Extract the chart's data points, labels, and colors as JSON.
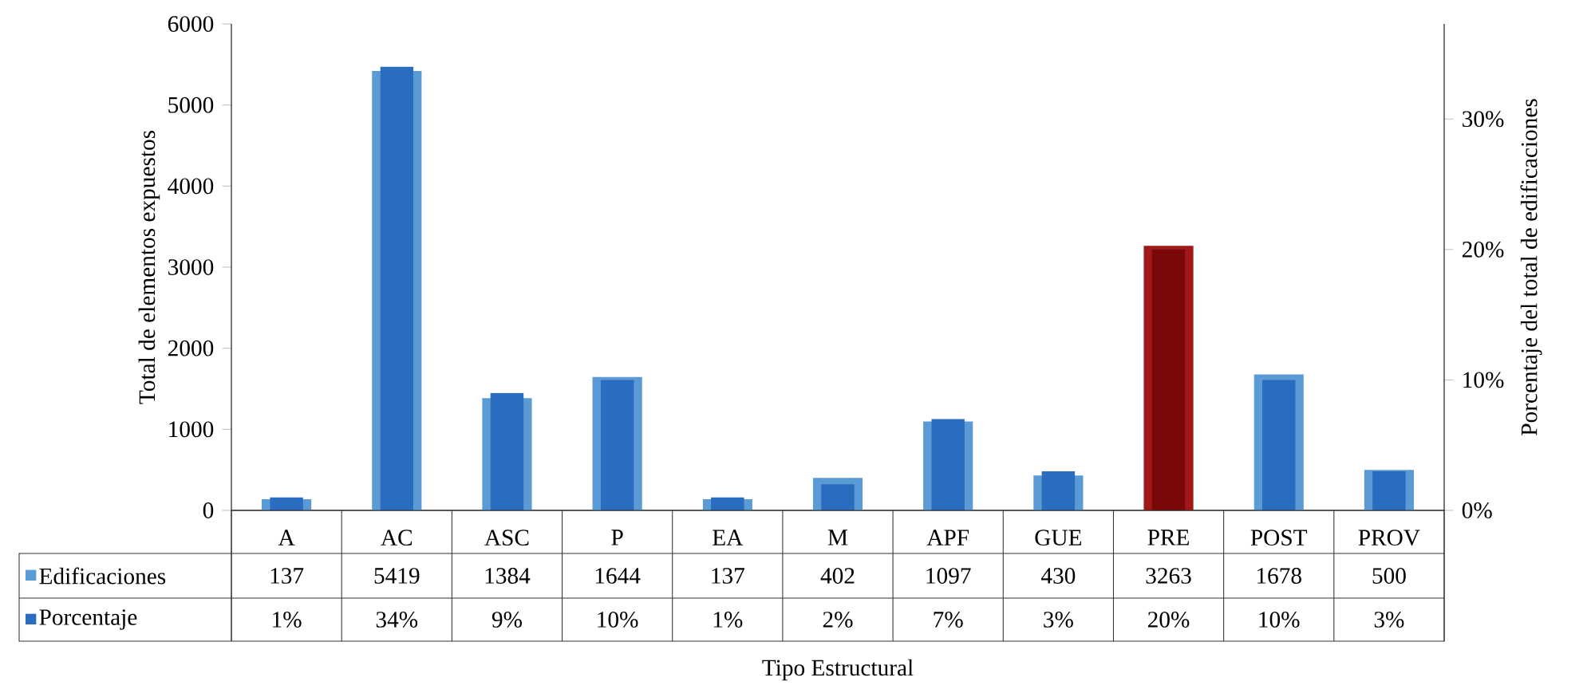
{
  "chart_data": {
    "type": "bar",
    "xlabel": "Tipo Estructural",
    "ylabel": "Total de elementos expuestos",
    "y2label": "Porcentaje del total de edificaciones",
    "categories": [
      "A",
      "AC",
      "ASC",
      "P",
      "EA",
      "M",
      "APF",
      "GUE",
      "PRE",
      "POST",
      "PROV"
    ],
    "series": [
      {
        "name": "Edificaciones",
        "color": "#5b9bd5",
        "colors": [
          "#5b9bd5",
          "#5b9bd5",
          "#5b9bd5",
          "#5b9bd5",
          "#5b9bd5",
          "#5b9bd5",
          "#5b9bd5",
          "#5b9bd5",
          "#a01818",
          "#5b9bd5",
          "#5b9bd5"
        ],
        "values": [
          137,
          5419,
          1384,
          1644,
          137,
          402,
          1097,
          430,
          3263,
          1678,
          500
        ]
      },
      {
        "name": "Porcentaje",
        "color": "#2a6cc0",
        "colors": [
          "#2a6cc0",
          "#2a6cc0",
          "#2a6cc0",
          "#2a6cc0",
          "#2a6cc0",
          "#2a6cc0",
          "#2a6cc0",
          "#2a6cc0",
          "#7a0808",
          "#2a6cc0",
          "#2a6cc0"
        ],
        "axis": "y2",
        "values": [
          1,
          34,
          9,
          10,
          1,
          2,
          7,
          3,
          20,
          10,
          3
        ],
        "value_labels": [
          "1%",
          "34%",
          "9%",
          "10%",
          "1%",
          "2%",
          "7%",
          "3%",
          "20%",
          "10%",
          "3%"
        ]
      }
    ],
    "ylim": [
      0,
      6000
    ],
    "yticks": [
      0,
      1000,
      2000,
      3000,
      4000,
      5000,
      6000
    ],
    "y2lim": [
      0,
      37.29
    ],
    "y2ticks": [
      {
        "value": 0,
        "label": "0%"
      },
      {
        "value": 10,
        "label": "10%"
      },
      {
        "value": 20,
        "label": "20%"
      },
      {
        "value": 30,
        "label": "30%"
      }
    ],
    "data_labels": true,
    "legend": "bottom",
    "grid": false
  }
}
